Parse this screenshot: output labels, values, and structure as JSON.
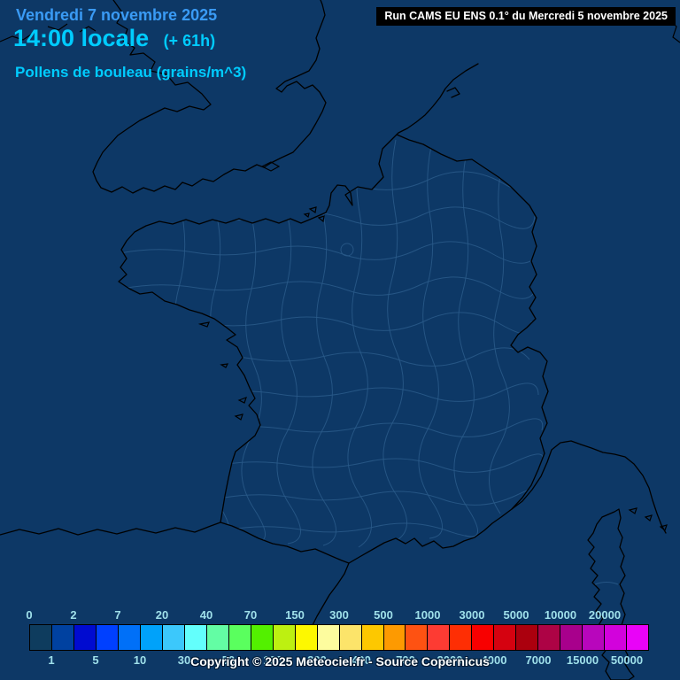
{
  "header": {
    "date": "Vendredi 7 novembre 2025",
    "time": "14:00 locale",
    "offset": "(+ 61h)",
    "subtitle": "Pollens de bouleau (grains/m^3)"
  },
  "run_box": {
    "text": "Run CAMS EU ENS 0.1° du Mercredi 5 novembre 2025"
  },
  "legend": {
    "unit": "grains/m^3",
    "boundaries": [
      {
        "value": "0",
        "row": "top"
      },
      {
        "value": "1",
        "row": "bottom"
      },
      {
        "value": "2",
        "row": "top"
      },
      {
        "value": "5",
        "row": "bottom"
      },
      {
        "value": "7",
        "row": "top"
      },
      {
        "value": "10",
        "row": "bottom"
      },
      {
        "value": "20",
        "row": "top"
      },
      {
        "value": "30",
        "row": "bottom"
      },
      {
        "value": "40",
        "row": "top"
      },
      {
        "value": "50",
        "row": "bottom"
      },
      {
        "value": "70",
        "row": "top"
      },
      {
        "value": "100",
        "row": "bottom"
      },
      {
        "value": "150",
        "row": "top"
      },
      {
        "value": "200",
        "row": "bottom"
      },
      {
        "value": "300",
        "row": "top"
      },
      {
        "value": "400",
        "row": "bottom"
      },
      {
        "value": "500",
        "row": "top"
      },
      {
        "value": "700",
        "row": "bottom"
      },
      {
        "value": "1000",
        "row": "top"
      },
      {
        "value": "2000",
        "row": "bottom"
      },
      {
        "value": "3000",
        "row": "top"
      },
      {
        "value": "4000",
        "row": "bottom"
      },
      {
        "value": "5000",
        "row": "top"
      },
      {
        "value": "7000",
        "row": "bottom"
      },
      {
        "value": "10000",
        "row": "top"
      },
      {
        "value": "15000",
        "row": "bottom"
      },
      {
        "value": "20000",
        "row": "top"
      },
      {
        "value": "50000",
        "row": "bottom"
      }
    ],
    "cell_colors": [
      "#0e3c5e",
      "#0041a0",
      "#000bd0",
      "#0040ff",
      "#0070f8",
      "#00a2fa",
      "#3cc8fb",
      "#63fffc",
      "#63fda4",
      "#5aff5e",
      "#53f000",
      "#bdf011",
      "#fdf800",
      "#fdfc9e",
      "#fce46a",
      "#fdc800",
      "#fd9a01",
      "#fe5212",
      "#fd3b33",
      "#fe2e04",
      "#f80000",
      "#d50210",
      "#ab000e",
      "#ad0345",
      "#a8008c",
      "#b806bc",
      "#d202dc",
      "#e903f8"
    ],
    "label_color": "#9fe0ea"
  },
  "footer": {
    "copyright": "Copyright © 2025 Meteociel.fr - Source Copernicus"
  },
  "map": {
    "background": "#0d3866",
    "coast_color": "#000000",
    "department_border_color": "#2a5a8a",
    "region": "France"
  }
}
